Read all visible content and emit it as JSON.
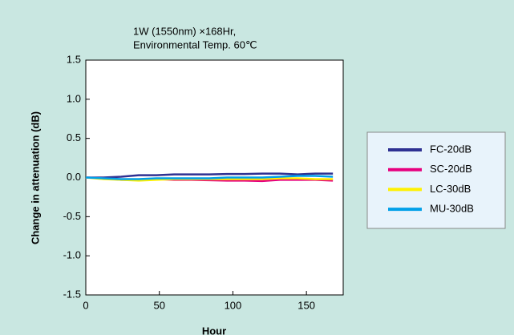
{
  "chart_data": {
    "type": "line",
    "annotations": [
      "1W (1550nm) ×168Hr,",
      "Environmental Temp. 60℃"
    ],
    "x_label": "Hour",
    "y_label": "Change in attenuation (dB)",
    "x": [
      0,
      12,
      24,
      36,
      48,
      60,
      72,
      84,
      96,
      108,
      120,
      132,
      144,
      156,
      168
    ],
    "series": [
      {
        "name": "FC-20dB",
        "color": "#2e3192",
        "values": [
          0,
          0,
          0.01,
          0.03,
          0.03,
          0.04,
          0.04,
          0.04,
          0.045,
          0.045,
          0.05,
          0.05,
          0.04,
          0.05,
          0.05
        ]
      },
      {
        "name": "SC-20dB",
        "color": "#e6007e",
        "values": [
          0,
          -0.01,
          -0.03,
          -0.03,
          -0.02,
          -0.03,
          -0.03,
          -0.035,
          -0.04,
          -0.04,
          -0.045,
          -0.03,
          -0.03,
          -0.03,
          -0.04
        ]
      },
      {
        "name": "LC-30dB",
        "color": "#fff100",
        "values": [
          0,
          -0.02,
          -0.03,
          -0.04,
          -0.03,
          -0.02,
          -0.02,
          -0.02,
          -0.02,
          -0.02,
          -0.02,
          -0.01,
          -0.01,
          -0.02,
          -0.02
        ]
      },
      {
        "name": "MU-30dB",
        "color": "#00a0e9",
        "values": [
          0,
          -0.01,
          -0.02,
          -0.02,
          -0.01,
          -0.01,
          -0.01,
          -0.01,
          0,
          0,
          0,
          0.01,
          0.02,
          0.02,
          0.01
        ]
      }
    ],
    "xlim": [
      0,
      175
    ],
    "xticks": [
      0,
      50,
      100,
      150
    ],
    "ylim": [
      -1.5,
      1.5
    ],
    "yticks": [
      1.5,
      {
        "value": 1.0,
        "label": "1.0"
      },
      0.5,
      {
        "value": 0,
        "label": "0.0"
      },
      -0.5,
      {
        "value": -1.0,
        "label": "-1.0"
      },
      -1.5
    ],
    "grid": false
  }
}
